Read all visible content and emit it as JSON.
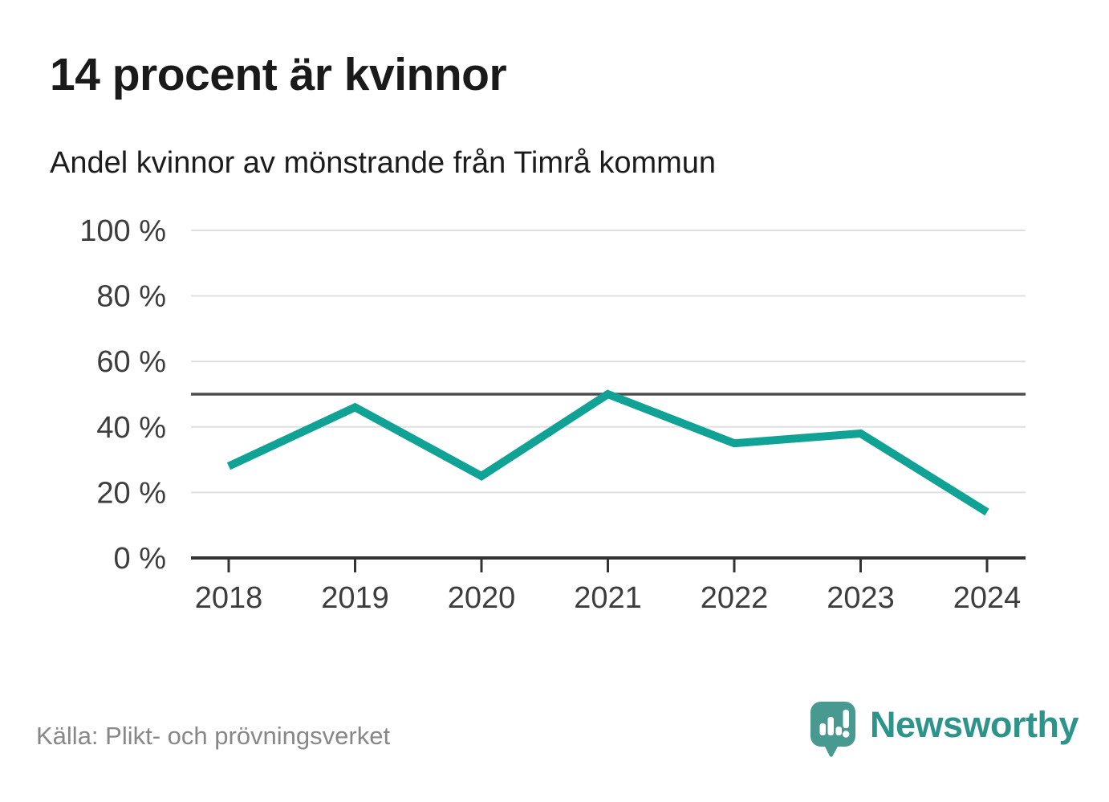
{
  "header": {
    "title": "14 procent är kvinnor",
    "subtitle": "Andel kvinnor av mönstrande från Timrå kommun"
  },
  "footer": {
    "source": "Källa: Plikt- och prövningsverket",
    "brand": "Newsworthy"
  },
  "colors": {
    "line": "#10a294",
    "reference_line": "#4d4d4d",
    "axis": "#333333",
    "grid": "#e0e0e0",
    "tick_label": "#3d3d3d",
    "brand_teal": "#2e948b",
    "icon_teal": "#48998f"
  },
  "chart_data": {
    "type": "line",
    "title": "14 procent är kvinnor",
    "subtitle": "Andel kvinnor av mönstrande från Timrå kommun",
    "x": [
      "2018",
      "2019",
      "2020",
      "2021",
      "2022",
      "2023",
      "2024"
    ],
    "series": [
      {
        "name": "Andel kvinnor av mönstrande",
        "values": [
          28,
          46,
          25,
          50,
          35,
          38,
          14
        ]
      }
    ],
    "unit": "%",
    "ylim": [
      0,
      100
    ],
    "yticks": [
      0,
      20,
      40,
      60,
      80,
      100
    ],
    "ytick_suffix": " %",
    "reference_line": 50,
    "grid": true,
    "legend": false,
    "line_color": "#10a294"
  }
}
